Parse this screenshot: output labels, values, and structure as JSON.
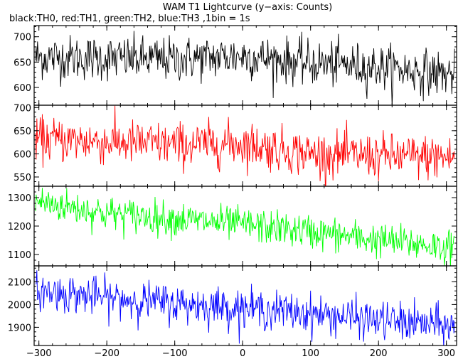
{
  "chart_data": {
    "type": "line",
    "title": "WAM T1 Lightcurve (y−axis: Counts)",
    "subtitle": "black:TH0, red:TH1, green:TH2, blue:TH3 ,1bin = 1s",
    "xlim": [
      -307,
      315
    ],
    "x_ticks": [
      -300,
      -200,
      -100,
      0,
      100,
      200,
      300
    ],
    "x_tick_labels": [
      "−300",
      "−200",
      "−100",
      "0",
      "100",
      "200",
      "300"
    ],
    "grid": false,
    "panels": [
      {
        "series": "TH0",
        "color": "#000000",
        "ylim": [
          565,
          722
        ],
        "y_ticks": [
          600,
          650,
          700
        ],
        "y_tick_labels": [
          "600",
          "650",
          "700"
        ],
        "trend": [
          [
            -300,
            660
          ],
          [
            -100,
            655
          ],
          [
            0,
            662
          ],
          [
            100,
            648
          ],
          [
            200,
            640
          ],
          [
            310,
            625
          ]
        ],
        "noise": 22
      },
      {
        "series": "TH1",
        "color": "#ff0000",
        "ylim": [
          530,
          705
        ],
        "y_ticks": [
          550,
          600,
          650,
          700
        ],
        "y_tick_labels": [
          "550",
          "600",
          "650",
          "700"
        ],
        "trend": [
          [
            -300,
            632
          ],
          [
            -100,
            620
          ],
          [
            0,
            622
          ],
          [
            100,
            600
          ],
          [
            200,
            595
          ],
          [
            310,
            592
          ]
        ],
        "noise": 24
      },
      {
        "series": "TH2",
        "color": "#00ff00",
        "ylim": [
          1060,
          1340
        ],
        "y_ticks": [
          1100,
          1200,
          1300
        ],
        "y_tick_labels": [
          "1100",
          "1200",
          "1300"
        ],
        "trend": [
          [
            -300,
            1285
          ],
          [
            -200,
            1245
          ],
          [
            -100,
            1225
          ],
          [
            0,
            1205
          ],
          [
            100,
            1180
          ],
          [
            200,
            1150
          ],
          [
            310,
            1125
          ]
        ],
        "noise": 30
      },
      {
        "series": "TH3",
        "color": "#0000ff",
        "ylim": [
          1820,
          2170
        ],
        "y_ticks": [
          1900,
          2000,
          2100
        ],
        "y_tick_labels": [
          "1900",
          "2000",
          "2100"
        ],
        "trend": [
          [
            -300,
            2060
          ],
          [
            -200,
            2030
          ],
          [
            -100,
            2005
          ],
          [
            0,
            1985
          ],
          [
            100,
            1960
          ],
          [
            200,
            1930
          ],
          [
            310,
            1905
          ]
        ],
        "noise": 42
      }
    ]
  }
}
